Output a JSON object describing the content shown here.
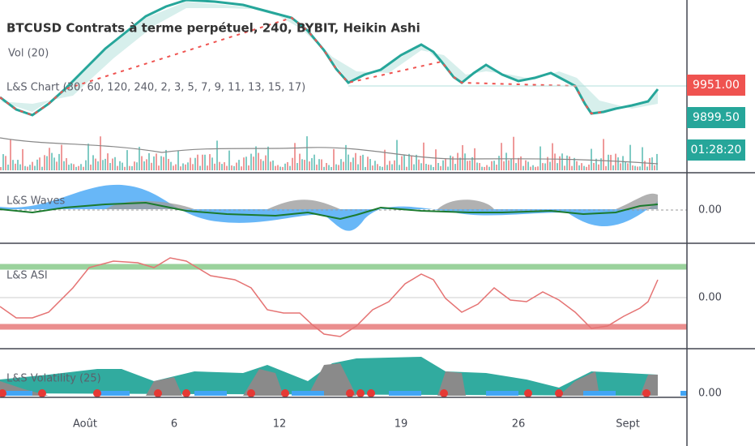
{
  "header": {
    "title": "BTCUSD Contrats à terme perpétuel, 240, BYBIT, Heikin Ashi",
    "volume": "Vol (20)",
    "indicator": "L&S Chart (30, 60, 120, 240, 2, 3, 5, 7, 9, 11, 13, 15, 17)"
  },
  "price_tags": [
    "9951.00",
    "9899.50",
    "01:28:20"
  ],
  "panes": [
    {
      "label": "L&S Waves",
      "zero": "0.00"
    },
    {
      "label": "L&S ASI",
      "zero": "0.00"
    },
    {
      "label": "L&S Volatility (25)",
      "zero": "0.00"
    }
  ],
  "time_axis": [
    "Août",
    "6",
    "12",
    "19",
    "26",
    "Sept"
  ]
}
